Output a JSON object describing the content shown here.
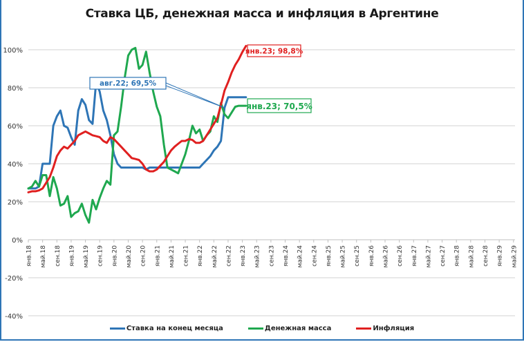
{
  "title": "Ставка ЦБ, денежная масса и инфляция в Аргентине",
  "colors": {
    "rate": "#2e75b6",
    "money": "#1fa84f",
    "inflation": "#e02020",
    "grid": "#d9d9d9",
    "frame": "#2e75b6"
  },
  "legend": [
    {
      "label": "Ставка на конец месяца",
      "color": "#2e75b6"
    },
    {
      "label": "Денежная масса",
      "color": "#1fa84f"
    },
    {
      "label": "Инфляция",
      "color": "#e02020"
    }
  ],
  "annotations": [
    {
      "label": "авг.22; 69,5%",
      "series": "rate",
      "color": "#2e75b6"
    },
    {
      "label": "янв.23; 98,8%",
      "series": "inflation",
      "color": "#e02020"
    },
    {
      "label": "янв.23; 70,5%",
      "series": "money",
      "color": "#1fa84f"
    }
  ],
  "chart_data": {
    "type": "line",
    "title": "Ставка ЦБ, денежная масса и инфляция в Аргентине",
    "xlabel": "",
    "ylabel": "",
    "ylim": [
      -40,
      100
    ],
    "yticks": [
      "100%",
      "80%",
      "60%",
      "40%",
      "20%",
      "0%",
      "-20%",
      "-40%"
    ],
    "grid": true,
    "legend_position": "bottom",
    "x_tick_labels": [
      "янв.18",
      "май.18",
      "сен.18",
      "янв.19",
      "май.19",
      "сен.19",
      "янв.20",
      "май.20",
      "сен.20",
      "янв.21",
      "май.21",
      "сен.21",
      "янв.22",
      "май.22",
      "сен.22",
      "янв.23",
      "май.23",
      "сен.23",
      "янв.24",
      "май.24",
      "сен.24",
      "янв.25",
      "май.25",
      "сен.25",
      "янв.26",
      "май.26",
      "сен.26",
      "янв.27",
      "май.27",
      "сен.27",
      "янв.28",
      "май.28",
      "сен.28",
      "янв.29",
      "май.29"
    ],
    "x_start": "янв.18",
    "x_step": "1 month",
    "series": [
      {
        "name": "Ставка на конец месяца",
        "key": "rate",
        "values": [
          27,
          27,
          27,
          28,
          40,
          40,
          40,
          60,
          65,
          68,
          60,
          59,
          54,
          50,
          68,
          74,
          71,
          63,
          61,
          83,
          78,
          68,
          63,
          55,
          45,
          40,
          38,
          38,
          38,
          38,
          38,
          38,
          38,
          37,
          38,
          38,
          38,
          38,
          38,
          38,
          38,
          38,
          38,
          38,
          38,
          38,
          38,
          38,
          38,
          40,
          42,
          44,
          47,
          49,
          52,
          69.5,
          75,
          75,
          75,
          75,
          75,
          75
        ]
      },
      {
        "name": "Денежная масса",
        "key": "money",
        "values": [
          27,
          28,
          31,
          28,
          34,
          34,
          23,
          33,
          27,
          18,
          19,
          23,
          12,
          14,
          15,
          19,
          13,
          9,
          21,
          16,
          22,
          27,
          31,
          29,
          55,
          57,
          70,
          85,
          97,
          100,
          101,
          90,
          92,
          99,
          88,
          78,
          70,
          65,
          50,
          38,
          37,
          36,
          35,
          40,
          45,
          52,
          60,
          56,
          58,
          52,
          55,
          57,
          65,
          62,
          72,
          66,
          64,
          67,
          70,
          70.5,
          70.5,
          70.5
        ]
      },
      {
        "name": "Инфляция",
        "key": "inflation",
        "values": [
          25,
          25.5,
          25.5,
          26,
          27,
          30,
          33,
          38,
          44,
          47,
          49,
          48,
          50,
          52,
          55,
          56,
          57,
          56,
          55,
          54.5,
          54,
          52,
          51,
          54,
          53,
          51,
          49,
          47,
          45,
          43,
          42.5,
          42,
          40,
          37,
          36,
          36,
          37,
          39,
          41,
          44,
          47,
          49,
          50.5,
          52,
          52,
          53,
          52.5,
          51,
          51,
          52,
          55,
          58,
          61,
          64,
          71,
          78.5,
          83,
          88,
          92,
          95,
          98.8,
          102
        ]
      }
    ]
  }
}
